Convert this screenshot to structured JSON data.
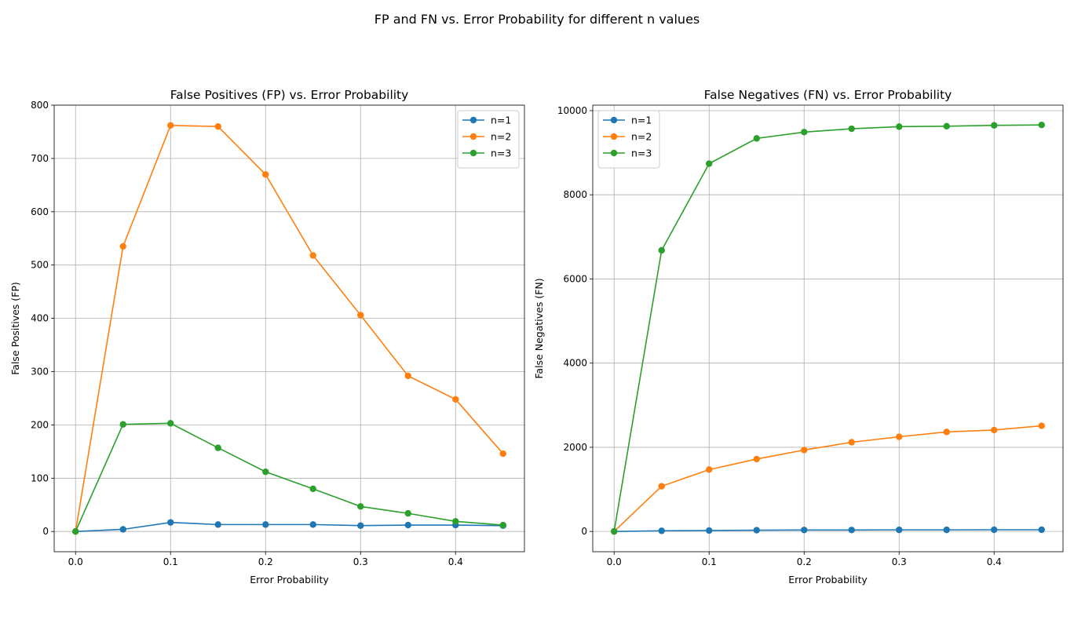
{
  "suptitle": "FP and FN vs. Error Probability for different n values",
  "colors": {
    "n1": "#1f77b4",
    "n2": "#ff7f0e",
    "n3": "#2ca02c",
    "grid": "#b0b0b0"
  },
  "chart_data": [
    {
      "type": "line",
      "title": "False Positives (FP) vs. Error Probability",
      "xlabel": "Error Probability",
      "ylabel": "False Positives (FP)",
      "x": [
        0.0,
        0.05,
        0.1,
        0.15,
        0.2,
        0.25,
        0.3,
        0.35,
        0.4,
        0.45
      ],
      "xlim": [
        -0.0225,
        0.4725
      ],
      "ylim": [
        -38,
        800
      ],
      "xticks": [
        0.0,
        0.1,
        0.2,
        0.3,
        0.4
      ],
      "xtick_labels": [
        "0.0",
        "0.1",
        "0.2",
        "0.3",
        "0.4"
      ],
      "yticks": [
        0,
        100,
        200,
        300,
        400,
        500,
        600,
        700,
        800
      ],
      "ytick_labels": [
        "0",
        "100",
        "200",
        "300",
        "400",
        "500",
        "600",
        "700",
        "800"
      ],
      "grid": true,
      "legend": "upper right",
      "series": [
        {
          "name": "n=1",
          "color": "#1f77b4",
          "values": [
            0,
            4,
            17,
            13,
            13,
            13,
            11,
            12,
            12,
            11
          ]
        },
        {
          "name": "n=2",
          "color": "#ff7f0e",
          "values": [
            0,
            535,
            762,
            760,
            670,
            518,
            406,
            292,
            248,
            146
          ]
        },
        {
          "name": "n=3",
          "color": "#2ca02c",
          "values": [
            0,
            201,
            203,
            157,
            112,
            80,
            47,
            34,
            19,
            12
          ]
        }
      ]
    },
    {
      "type": "line",
      "title": "False Negatives (FN) vs. Error Probability",
      "xlabel": "Error Probability",
      "ylabel": "False Negatives (FN)",
      "x": [
        0.0,
        0.05,
        0.1,
        0.15,
        0.2,
        0.25,
        0.3,
        0.35,
        0.4,
        0.45
      ],
      "xlim": [
        -0.0225,
        0.4725
      ],
      "ylim": [
        -482,
        10130
      ],
      "xticks": [
        0.0,
        0.1,
        0.2,
        0.3,
        0.4
      ],
      "xtick_labels": [
        "0.0",
        "0.1",
        "0.2",
        "0.3",
        "0.4"
      ],
      "yticks": [
        0,
        2000,
        4000,
        6000,
        8000,
        10000
      ],
      "ytick_labels": [
        "0",
        "2000",
        "4000",
        "6000",
        "8000",
        "10000"
      ],
      "grid": true,
      "legend": "upper left",
      "series": [
        {
          "name": "n=1",
          "color": "#1f77b4",
          "values": [
            0,
            15,
            22,
            30,
            35,
            35,
            38,
            38,
            40,
            40
          ]
        },
        {
          "name": "n=2",
          "color": "#ff7f0e",
          "values": [
            0,
            1075,
            1470,
            1720,
            1935,
            2120,
            2250,
            2365,
            2410,
            2510
          ]
        },
        {
          "name": "n=3",
          "color": "#2ca02c",
          "values": [
            0,
            6680,
            8740,
            9340,
            9490,
            9570,
            9620,
            9630,
            9650,
            9660
          ]
        }
      ]
    }
  ]
}
